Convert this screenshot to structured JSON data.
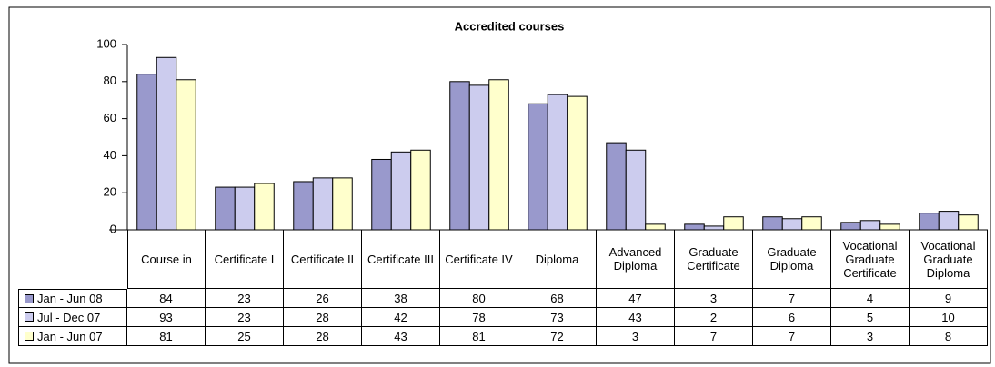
{
  "chart_data": {
    "type": "bar",
    "title": "Accredited courses",
    "categories": [
      "Course in",
      "Certificate I",
      "Certificate II",
      "Certificate III",
      "Certificate IV",
      "Diploma",
      "Advanced Diploma",
      "Graduate Certificate",
      "Graduate Diploma",
      "Vocational Graduate Certificate",
      "Vocational Graduate Diploma"
    ],
    "series": [
      {
        "name": "Jan - Jun 08",
        "color": "#9999cc",
        "values": [
          84,
          23,
          26,
          38,
          80,
          68,
          47,
          3,
          7,
          4,
          9
        ]
      },
      {
        "name": "Jul - Dec 07",
        "color": "#ccccee",
        "values": [
          93,
          23,
          28,
          42,
          78,
          73,
          43,
          2,
          6,
          5,
          10
        ]
      },
      {
        "name": "Jan - Jun 07",
        "color": "#ffffcc",
        "values": [
          81,
          25,
          28,
          43,
          81,
          72,
          3,
          7,
          7,
          3,
          8
        ]
      }
    ],
    "ylim": [
      0,
      100
    ],
    "yticks": [
      0,
      20,
      40,
      60,
      80,
      100
    ],
    "grid": false,
    "data_table": true
  }
}
